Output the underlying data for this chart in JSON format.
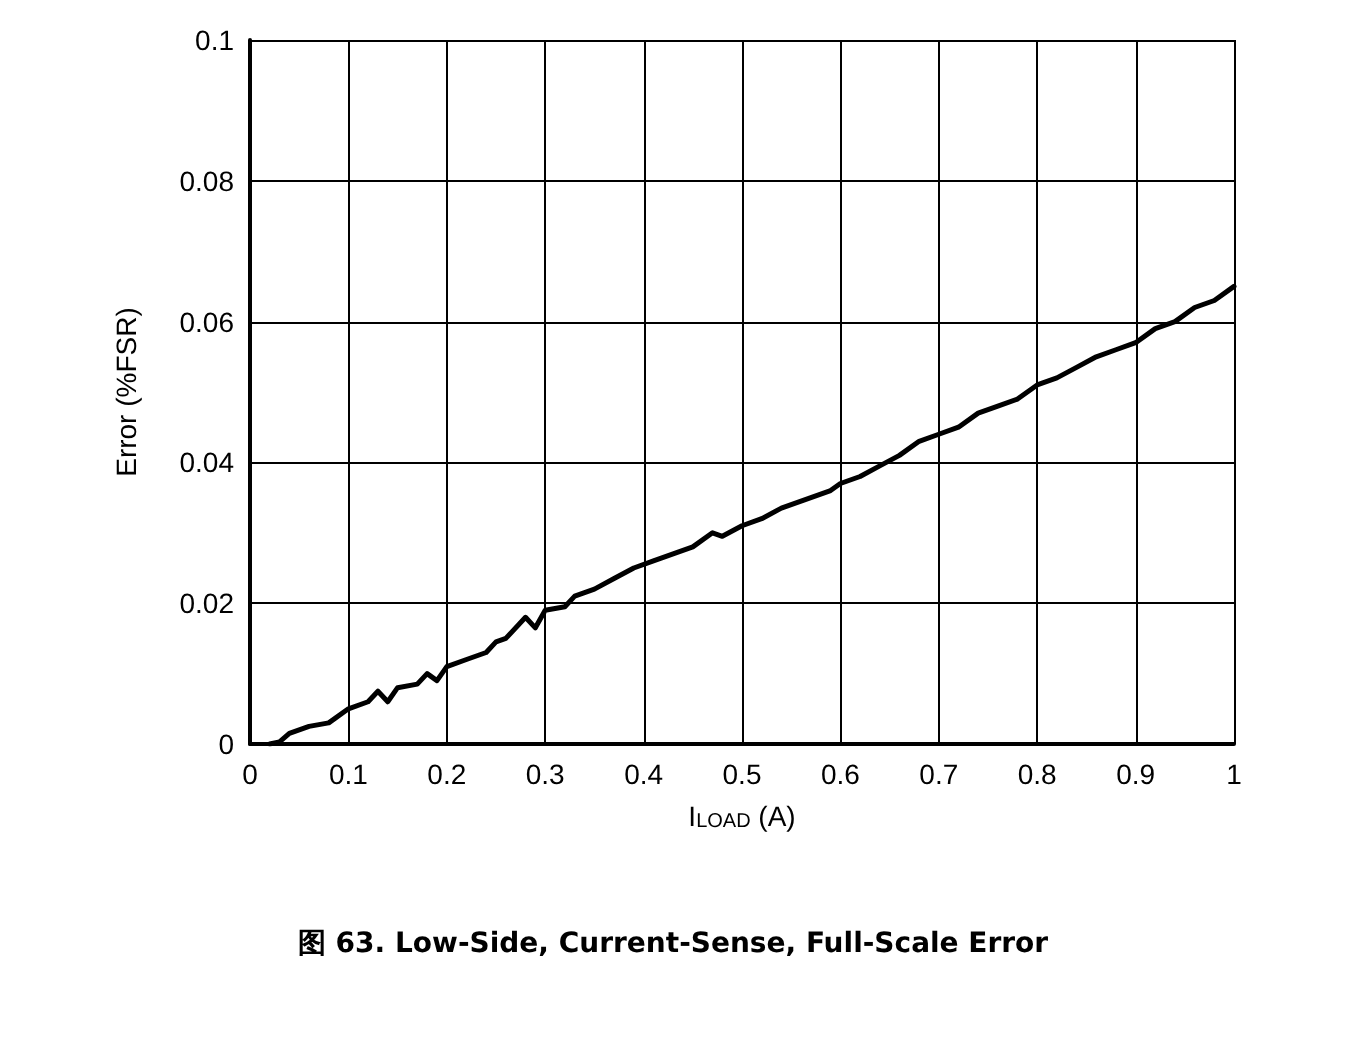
{
  "chart_data": {
    "type": "line",
    "title": "图 63. Low-Side, Current-Sense, Full-Scale Error",
    "xlabel": "I$_{LOAD}$ (A)",
    "ylabel": "Error (%FSR)",
    "x": [
      0.02,
      0.03,
      0.04,
      0.06,
      0.08,
      0.1,
      0.12,
      0.13,
      0.14,
      0.15,
      0.17,
      0.18,
      0.19,
      0.2,
      0.22,
      0.24,
      0.25,
      0.26,
      0.28,
      0.29,
      0.3,
      0.32,
      0.33,
      0.35,
      0.37,
      0.39,
      0.41,
      0.43,
      0.45,
      0.47,
      0.48,
      0.5,
      0.52,
      0.54,
      0.55,
      0.57,
      0.59,
      0.6,
      0.62,
      0.64,
      0.66,
      0.68,
      0.7,
      0.72,
      0.74,
      0.76,
      0.78,
      0.8,
      0.82,
      0.84,
      0.86,
      0.88,
      0.9,
      0.92,
      0.94,
      0.96,
      0.98,
      1.0
    ],
    "series": [
      {
        "color": "#000000",
        "values": [
          0,
          0.0003,
          0.0015,
          0.0025,
          0.003,
          0.005,
          0.006,
          0.0075,
          0.006,
          0.008,
          0.0085,
          0.01,
          0.009,
          0.011,
          0.012,
          0.013,
          0.0145,
          0.015,
          0.018,
          0.0165,
          0.019,
          0.0195,
          0.021,
          0.022,
          0.0235,
          0.025,
          0.026,
          0.027,
          0.028,
          0.03,
          0.0295,
          0.031,
          0.032,
          0.0335,
          0.034,
          0.035,
          0.036,
          0.037,
          0.038,
          0.0395,
          0.041,
          0.043,
          0.044,
          0.045,
          0.047,
          0.048,
          0.049,
          0.051,
          0.052,
          0.0535,
          0.055,
          0.056,
          0.057,
          0.059,
          0.06,
          0.062,
          0.063,
          0.065
        ]
      }
    ],
    "xlim": [
      0,
      1
    ],
    "xticks": [
      0,
      0.1,
      0.2,
      0.3,
      0.4,
      0.5,
      0.6,
      0.7,
      0.8,
      0.9,
      1
    ],
    "ylim": [
      0,
      0.1
    ],
    "yticks": [
      0,
      0.02,
      0.04,
      0.06,
      0.08,
      0.1
    ],
    "grid": true,
    "marker": "none",
    "line_style": "solid"
  }
}
